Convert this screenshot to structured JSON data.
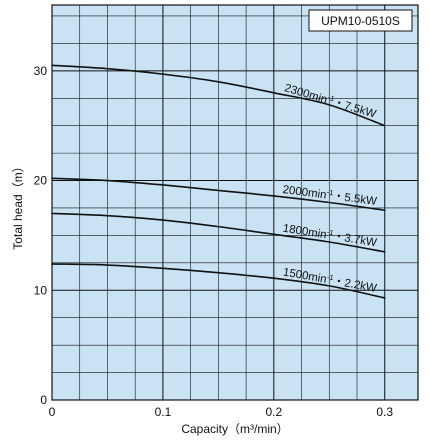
{
  "chart_data": {
    "type": "line",
    "model_label": "UPM10-0510S",
    "xlabel": "Capacity（m³/min）",
    "ylabel": "Total head（m）",
    "xlim": [
      0,
      0.33
    ],
    "ylim": [
      0,
      36
    ],
    "x_ticks": [
      "0",
      "0.1",
      "0.2",
      "0.3"
    ],
    "y_ticks": [
      "0",
      "10",
      "20",
      "30"
    ],
    "grid": true,
    "colors": {
      "plot_background": "#c9e3f5",
      "grid": "#111111",
      "curve": "#111111"
    },
    "series": [
      {
        "name": "2300min⁻¹・7.5kW",
        "label": {
          "speed": "2300min",
          "sup": "-1",
          "sep": "・",
          "power": "7.5kW"
        },
        "x": [
          0,
          0.05,
          0.1,
          0.15,
          0.2,
          0.25,
          0.3
        ],
        "y": [
          30.5,
          30.2,
          29.7,
          29.0,
          28.0,
          26.9,
          25.0
        ]
      },
      {
        "name": "2000min⁻¹・5.5kW",
        "label": {
          "speed": "2000min",
          "sup": "-1",
          "sep": "・",
          "power": "5.5kW"
        },
        "x": [
          0,
          0.05,
          0.1,
          0.15,
          0.2,
          0.25,
          0.3
        ],
        "y": [
          20.2,
          20.0,
          19.6,
          19.1,
          18.6,
          18.0,
          17.3
        ]
      },
      {
        "name": "1800min⁻¹・3.7kW",
        "label": {
          "speed": "1800min",
          "sup": "-1",
          "sep": "・",
          "power": "3.7kW"
        },
        "x": [
          0,
          0.05,
          0.1,
          0.15,
          0.2,
          0.25,
          0.3
        ],
        "y": [
          17.0,
          16.8,
          16.4,
          15.8,
          15.1,
          14.4,
          13.5
        ]
      },
      {
        "name": "1500min⁻¹・2.2kW",
        "label": {
          "speed": "1500min",
          "sup": "-1",
          "sep": "・",
          "power": "2.2kW"
        },
        "x": [
          0,
          0.05,
          0.1,
          0.15,
          0.2,
          0.25,
          0.3
        ],
        "y": [
          12.4,
          12.3,
          12.0,
          11.6,
          11.1,
          10.4,
          9.3
        ]
      }
    ]
  }
}
